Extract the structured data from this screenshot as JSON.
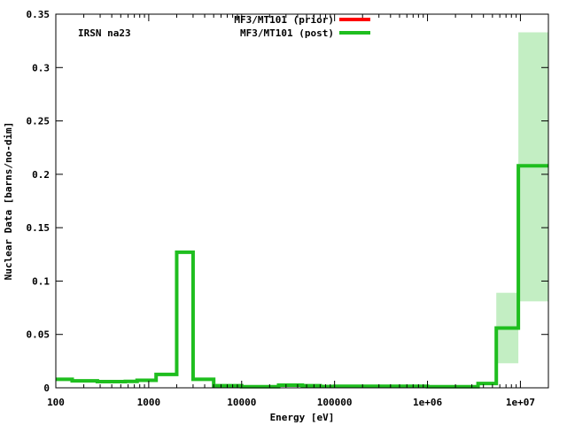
{
  "chart_data": {
    "type": "line",
    "title": "",
    "annotation": "IRSN na23",
    "xlabel": "Energy [eV]",
    "ylabel": "Nuclear Data [barns/no-dim]",
    "xscale": "log",
    "xlim": [
      100,
      20000000
    ],
    "ylim": [
      0,
      0.35
    ],
    "x_ticks": [
      {
        "value": 100,
        "label": "100"
      },
      {
        "value": 1000,
        "label": "1000"
      },
      {
        "value": 10000,
        "label": "10000"
      },
      {
        "value": 100000,
        "label": "100000"
      },
      {
        "value": 1000000,
        "label": "1e+06"
      },
      {
        "value": 10000000,
        "label": "1e+07"
      }
    ],
    "y_ticks": [
      {
        "value": 0,
        "label": "0"
      },
      {
        "value": 0.05,
        "label": "0.05"
      },
      {
        "value": 0.1,
        "label": "0.1"
      },
      {
        "value": 0.15,
        "label": "0.15"
      },
      {
        "value": 0.2,
        "label": "0.2"
      },
      {
        "value": 0.25,
        "label": "0.25"
      },
      {
        "value": 0.3,
        "label": "0.3"
      },
      {
        "value": 0.35,
        "label": "0.35"
      }
    ],
    "grid": false,
    "legend_position": "top-center",
    "series": [
      {
        "name": "MF3/MT101 (prior)",
        "color": "#ff0000",
        "values": []
      },
      {
        "name": "MF3/MT101 (post)",
        "color": "#1fbe1f",
        "bin_edges": [
          100,
          150,
          280,
          560,
          750,
          1200,
          2000,
          3000,
          5000,
          10000,
          25000,
          45000,
          70000,
          100000,
          1000000,
          3500000,
          5500000,
          9500000,
          20000000
        ],
        "values": [
          0.008,
          0.0065,
          0.0058,
          0.006,
          0.007,
          0.0125,
          0.127,
          0.008,
          0.002,
          0.001,
          0.0025,
          0.002,
          0.0012,
          0.0015,
          0.001,
          0.004,
          0.056,
          0.208
        ]
      }
    ],
    "uncertainty_bands": [
      {
        "x_range": [
          5500000,
          9500000
        ],
        "y_range": [
          0.023,
          0.089
        ]
      },
      {
        "x_range": [
          9500000,
          20000000
        ],
        "y_range": [
          0.081,
          0.333
        ]
      }
    ],
    "band_color": "#c3eec3"
  }
}
